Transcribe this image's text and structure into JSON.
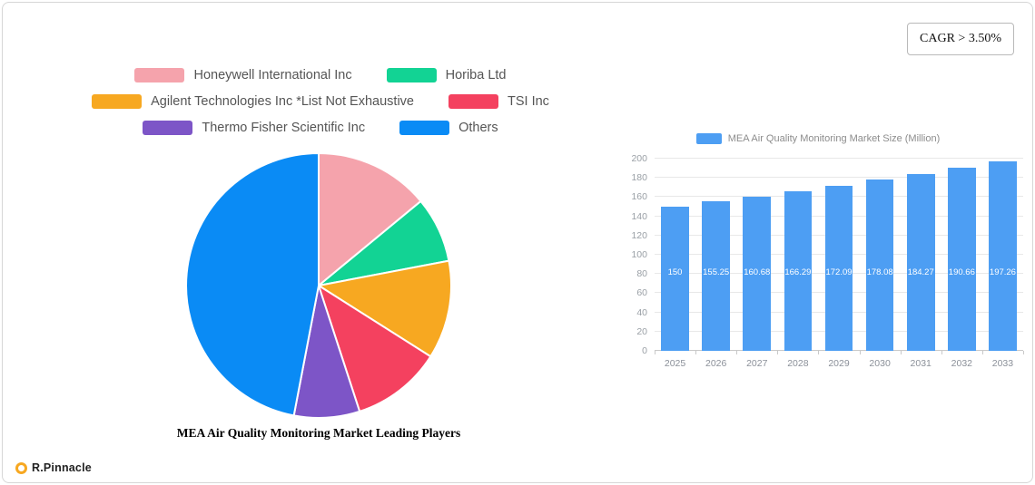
{
  "cagr_badge": "CAGR > 3.50%",
  "brand": "R.Pinnacle",
  "chart_data": [
    {
      "type": "pie",
      "title": "MEA Air Quality Monitoring Market Leading Players",
      "labels": [
        "Honeywell International Inc",
        "Horiba Ltd",
        "Agilent Technologies Inc *List Not Exhaustive",
        "TSI Inc",
        "Thermo Fisher Scientific Inc",
        "Others"
      ],
      "values": [
        14,
        8,
        12,
        11,
        8,
        47
      ],
      "colors": [
        "#F5A3AC",
        "#12D394",
        "#F7A821",
        "#F4415F",
        "#7D55C7",
        "#0A8BF5"
      ],
      "legend_rows": [
        [
          0,
          1
        ],
        [
          2,
          3
        ],
        [
          4,
          5
        ]
      ],
      "legend_position": "top",
      "start_angle_deg": 0,
      "direction": "clockwise"
    },
    {
      "type": "bar",
      "title": "MEA Air Quality Monitoring Market Size (Million)",
      "categories": [
        "2025",
        "2026",
        "2027",
        "2028",
        "2029",
        "2030",
        "2031",
        "2032",
        "2033"
      ],
      "values": [
        150,
        155.25,
        160.68,
        166.29,
        172.09,
        178.08,
        184.27,
        190.66,
        197.26
      ],
      "bar_labels": [
        "150",
        "155.25",
        "160.68",
        "166.29",
        "172.09",
        "178.08",
        "184.27",
        "190.66",
        "197.26"
      ],
      "color": "#4D9EF3",
      "xlabel": "",
      "ylabel": "",
      "ylim": [
        0,
        200
      ],
      "ytick_step": 20,
      "grid": true,
      "legend_position": "top"
    }
  ]
}
